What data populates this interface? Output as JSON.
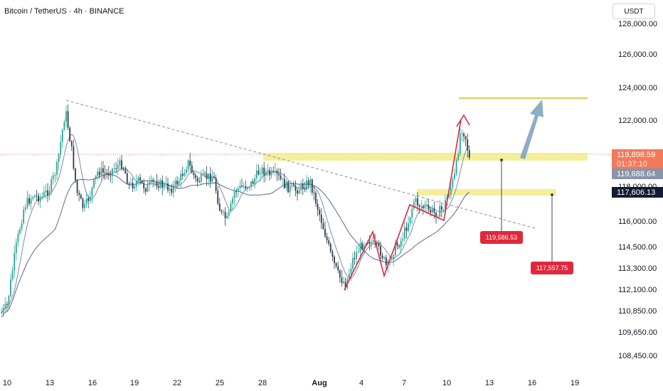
{
  "header": {
    "title": "Bitcoin / TetherUS · 4h · BINANCE",
    "currency_button": "USDT"
  },
  "colors": {
    "up": "#26a69a",
    "down": "#2f3b4a",
    "ma_fast": "#7b8cab",
    "ma_slow": "#5b6b80",
    "zone": "#f2ec8a",
    "zone_line": "#d8d24a",
    "pattern": "#e0283c",
    "arrow": "#7fa4bf",
    "price_marker": "#e0283c",
    "last_price_bg": "#f07a5a",
    "ma_label_bg": "#8894a8",
    "level_label_bg": "#141c33",
    "trendline": "#8a8f99"
  },
  "chart_data": {
    "type": "candlestick",
    "title": "Bitcoin / TetherUS · 4h · BINANCE",
    "y_axis_scale": "nonlinear (tick labels unevenly spaced)",
    "y_ticks": [
      "128,000.00",
      "126,000.00",
      "124,000.00",
      "122,000.00",
      "118,000.00",
      "116,000.00",
      "114,500.00",
      "113,300.00",
      "112,100.00",
      "110,850.00",
      "109,650.00",
      "108,450.00"
    ],
    "x_ticks": [
      {
        "label": "10",
        "bold": false
      },
      {
        "label": "13",
        "bold": false
      },
      {
        "label": "16",
        "bold": false
      },
      {
        "label": "19",
        "bold": false
      },
      {
        "label": "22",
        "bold": false
      },
      {
        "label": "25",
        "bold": false
      },
      {
        "label": "28",
        "bold": false
      },
      {
        "label": "Aug",
        "bold": true
      },
      {
        "label": "4",
        "bold": false
      },
      {
        "label": "7",
        "bold": false
      },
      {
        "label": "10",
        "bold": false
      },
      {
        "label": "13",
        "bold": false
      },
      {
        "label": "16",
        "bold": false
      },
      {
        "label": "19",
        "bold": false
      }
    ],
    "axis_badges": {
      "last_price": "119,898.59",
      "countdown": "01:37:10",
      "ma_value": "119,688.64",
      "level": "117,606.13"
    },
    "price_labels": [
      "119,586.53",
      "117,557.75"
    ],
    "zones": [
      {
        "name": "upper-zone",
        "approx_price": 119700
      },
      {
        "name": "lower-zone",
        "approx_price": 117650
      }
    ],
    "target_line_approx": 123000,
    "grid": false,
    "legend": "none"
  }
}
